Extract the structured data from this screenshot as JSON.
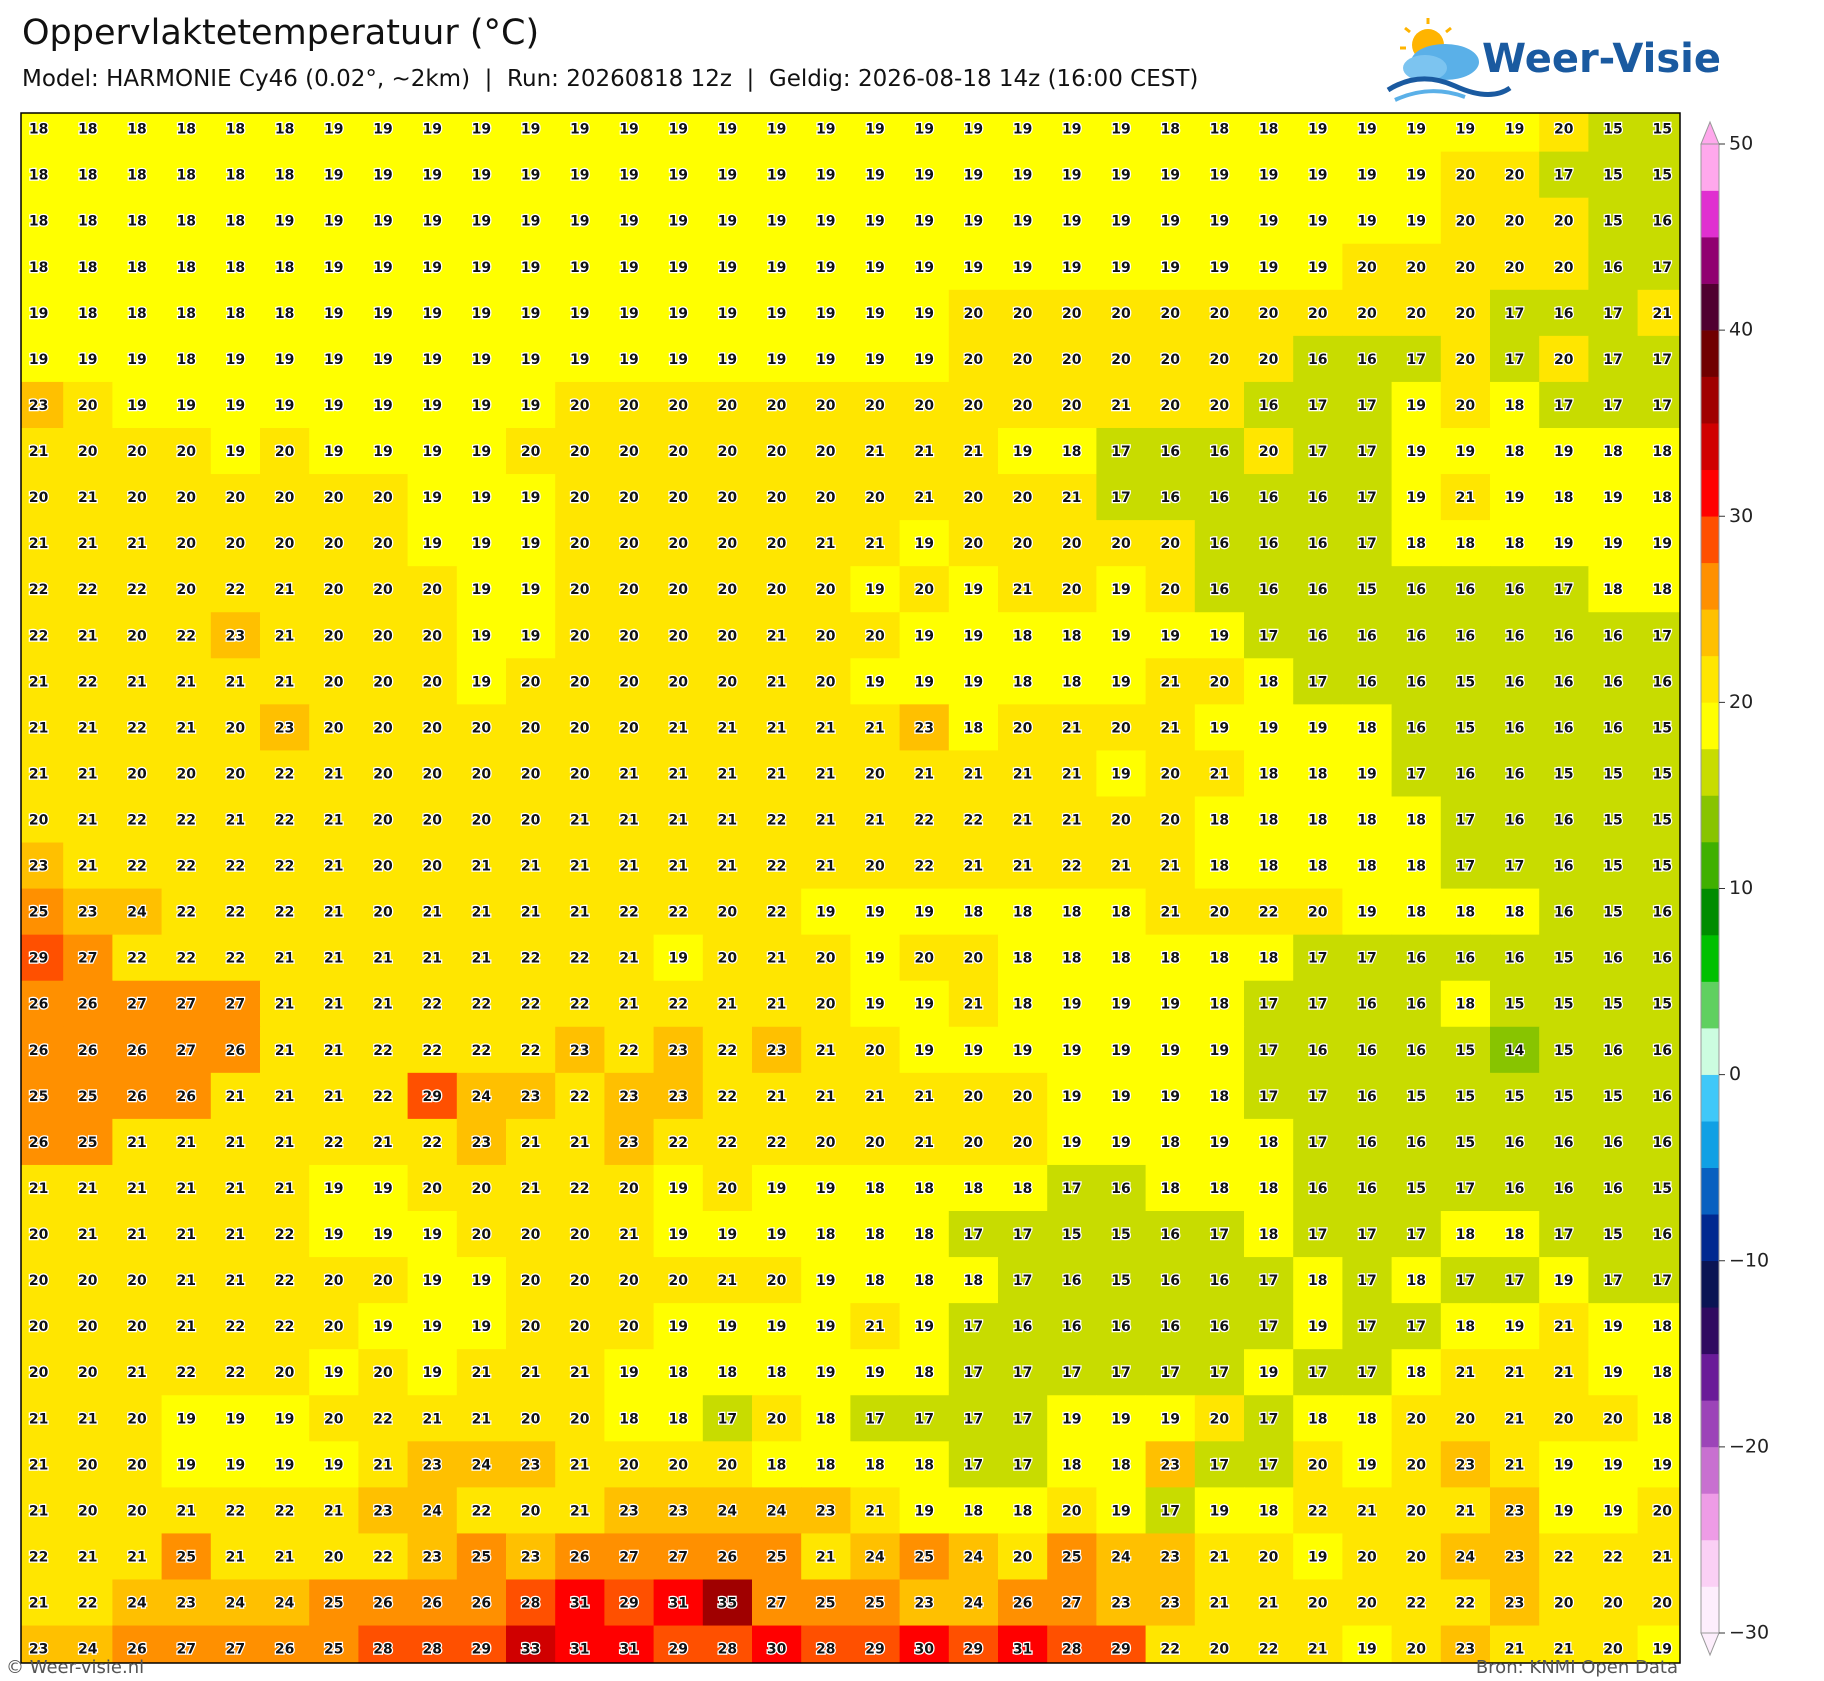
{
  "chart_data": {
    "type": "heatmap",
    "title": "Oppervlaktetemperatuur (°C)",
    "subtitle": "Model: HARMONIE Cy46 (0.02°, ~2km)  |  Run: 20260818 12z  |  Geldig: 2026-08-18 14z (16:00 CEST)",
    "values": [
      [
        18,
        18,
        18,
        18,
        18,
        18,
        19,
        19,
        19,
        19,
        19,
        19,
        19,
        19,
        19,
        19,
        19,
        19,
        19,
        19,
        19,
        19,
        19,
        18,
        18,
        18,
        19,
        19,
        19,
        19,
        19,
        20,
        15,
        15
      ],
      [
        18,
        18,
        18,
        18,
        18,
        18,
        19,
        19,
        19,
        19,
        19,
        19,
        19,
        19,
        19,
        19,
        19,
        19,
        19,
        19,
        19,
        19,
        19,
        19,
        19,
        19,
        19,
        19,
        19,
        20,
        20,
        17,
        15,
        15
      ],
      [
        18,
        18,
        18,
        18,
        18,
        19,
        19,
        19,
        19,
        19,
        19,
        19,
        19,
        19,
        19,
        19,
        19,
        19,
        19,
        19,
        19,
        19,
        19,
        19,
        19,
        19,
        19,
        19,
        19,
        20,
        20,
        20,
        15,
        16
      ],
      [
        18,
        18,
        18,
        18,
        18,
        18,
        19,
        19,
        19,
        19,
        19,
        19,
        19,
        19,
        19,
        19,
        19,
        19,
        19,
        19,
        19,
        19,
        19,
        19,
        19,
        19,
        19,
        20,
        20,
        20,
        20,
        20,
        16,
        17
      ],
      [
        19,
        18,
        18,
        18,
        18,
        18,
        19,
        19,
        19,
        19,
        19,
        19,
        19,
        19,
        19,
        19,
        19,
        19,
        19,
        20,
        20,
        20,
        20,
        20,
        20,
        20,
        20,
        20,
        20,
        20,
        17,
        16,
        17,
        21
      ],
      [
        19,
        19,
        19,
        18,
        19,
        19,
        19,
        19,
        19,
        19,
        19,
        19,
        19,
        19,
        19,
        19,
        19,
        19,
        19,
        20,
        20,
        20,
        20,
        20,
        20,
        20,
        16,
        16,
        17,
        20,
        17,
        20,
        17,
        17
      ],
      [
        23,
        20,
        19,
        19,
        19,
        19,
        19,
        19,
        19,
        19,
        19,
        20,
        20,
        20,
        20,
        20,
        20,
        20,
        20,
        20,
        20,
        20,
        21,
        20,
        20,
        16,
        17,
        17,
        19,
        20,
        18,
        17,
        17,
        17
      ],
      [
        21,
        20,
        20,
        20,
        19,
        20,
        19,
        19,
        19,
        19,
        20,
        20,
        20,
        20,
        20,
        20,
        20,
        21,
        21,
        21,
        19,
        18,
        17,
        16,
        16,
        20,
        17,
        17,
        19,
        19,
        18,
        19,
        18,
        18
      ],
      [
        20,
        21,
        20,
        20,
        20,
        20,
        20,
        20,
        19,
        19,
        19,
        20,
        20,
        20,
        20,
        20,
        20,
        20,
        21,
        20,
        20,
        21,
        17,
        16,
        16,
        16,
        16,
        17,
        19,
        21,
        19,
        18,
        19,
        18
      ],
      [
        21,
        21,
        21,
        20,
        20,
        20,
        20,
        20,
        19,
        19,
        19,
        20,
        20,
        20,
        20,
        20,
        21,
        21,
        19,
        20,
        20,
        20,
        20,
        20,
        16,
        16,
        16,
        17,
        18,
        18,
        18,
        19,
        19,
        19
      ],
      [
        22,
        22,
        22,
        20,
        22,
        21,
        20,
        20,
        20,
        19,
        19,
        20,
        20,
        20,
        20,
        20,
        20,
        19,
        20,
        19,
        21,
        20,
        19,
        20,
        16,
        16,
        16,
        15,
        16,
        16,
        16,
        17,
        18,
        18
      ],
      [
        22,
        21,
        20,
        22,
        23,
        21,
        20,
        20,
        20,
        19,
        19,
        20,
        20,
        20,
        20,
        21,
        20,
        20,
        19,
        19,
        18,
        18,
        19,
        19,
        19,
        17,
        16,
        16,
        16,
        16,
        16,
        16,
        16,
        17
      ],
      [
        21,
        22,
        21,
        21,
        21,
        21,
        20,
        20,
        20,
        19,
        20,
        20,
        20,
        20,
        20,
        21,
        20,
        19,
        19,
        19,
        18,
        18,
        19,
        21,
        20,
        18,
        17,
        16,
        16,
        15,
        16,
        16,
        16,
        16
      ],
      [
        21,
        21,
        22,
        21,
        20,
        23,
        20,
        20,
        20,
        20,
        20,
        20,
        20,
        21,
        21,
        21,
        21,
        21,
        23,
        18,
        20,
        21,
        20,
        21,
        19,
        19,
        19,
        18,
        16,
        15,
        16,
        16,
        16,
        15
      ],
      [
        21,
        21,
        20,
        20,
        20,
        22,
        21,
        20,
        20,
        20,
        20,
        20,
        21,
        21,
        21,
        21,
        21,
        20,
        21,
        21,
        21,
        21,
        19,
        20,
        21,
        18,
        18,
        19,
        17,
        16,
        16,
        15,
        15,
        15
      ],
      [
        20,
        21,
        22,
        22,
        21,
        22,
        21,
        20,
        20,
        20,
        20,
        21,
        21,
        21,
        21,
        22,
        21,
        21,
        22,
        22,
        21,
        21,
        20,
        20,
        18,
        18,
        18,
        18,
        18,
        17,
        16,
        16,
        15,
        15
      ],
      [
        23,
        21,
        22,
        22,
        22,
        22,
        21,
        20,
        20,
        21,
        21,
        21,
        21,
        21,
        21,
        22,
        21,
        20,
        22,
        21,
        21,
        22,
        21,
        21,
        18,
        18,
        18,
        18,
        18,
        17,
        17,
        16,
        15,
        15
      ],
      [
        25,
        23,
        24,
        22,
        22,
        22,
        21,
        20,
        21,
        21,
        21,
        21,
        22,
        22,
        20,
        22,
        19,
        19,
        19,
        18,
        18,
        18,
        18,
        21,
        20,
        22,
        20,
        19,
        18,
        18,
        18,
        16,
        15,
        16
      ],
      [
        29,
        27,
        22,
        22,
        22,
        21,
        21,
        21,
        21,
        21,
        22,
        22,
        21,
        19,
        20,
        21,
        20,
        19,
        20,
        20,
        18,
        18,
        18,
        18,
        18,
        18,
        17,
        17,
        16,
        16,
        16,
        15,
        16,
        16
      ],
      [
        26,
        26,
        27,
        27,
        27,
        21,
        21,
        21,
        22,
        22,
        22,
        22,
        21,
        22,
        21,
        21,
        20,
        19,
        19,
        21,
        18,
        19,
        19,
        19,
        18,
        17,
        17,
        16,
        16,
        18,
        15,
        15,
        15,
        15
      ],
      [
        26,
        26,
        26,
        27,
        26,
        21,
        21,
        22,
        22,
        22,
        22,
        23,
        22,
        23,
        22,
        23,
        21,
        20,
        19,
        19,
        19,
        19,
        19,
        19,
        19,
        17,
        16,
        16,
        16,
        15,
        14,
        15,
        16,
        16
      ],
      [
        25,
        25,
        26,
        26,
        21,
        21,
        21,
        22,
        29,
        24,
        23,
        22,
        23,
        23,
        22,
        21,
        21,
        21,
        21,
        20,
        20,
        19,
        19,
        19,
        18,
        17,
        17,
        16,
        15,
        15,
        15,
        15,
        15,
        16
      ],
      [
        26,
        25,
        21,
        21,
        21,
        21,
        22,
        21,
        22,
        23,
        21,
        21,
        23,
        22,
        22,
        22,
        20,
        20,
        21,
        20,
        20,
        19,
        19,
        18,
        19,
        18,
        17,
        16,
        16,
        15,
        16,
        16,
        16,
        16
      ],
      [
        21,
        21,
        21,
        21,
        21,
        21,
        19,
        19,
        20,
        20,
        21,
        22,
        20,
        19,
        20,
        19,
        19,
        18,
        18,
        18,
        18,
        17,
        16,
        18,
        18,
        18,
        16,
        16,
        15,
        17,
        16,
        16,
        16,
        15
      ],
      [
        20,
        21,
        21,
        21,
        21,
        22,
        19,
        19,
        19,
        20,
        20,
        20,
        21,
        19,
        19,
        19,
        18,
        18,
        18,
        17,
        17,
        15,
        15,
        16,
        17,
        18,
        17,
        17,
        17,
        18,
        18,
        17,
        15,
        16
      ],
      [
        20,
        20,
        20,
        21,
        21,
        22,
        20,
        20,
        19,
        19,
        20,
        20,
        20,
        20,
        21,
        20,
        19,
        18,
        18,
        18,
        17,
        16,
        15,
        16,
        16,
        17,
        18,
        17,
        18,
        17,
        17,
        19,
        17,
        17
      ],
      [
        20,
        20,
        20,
        21,
        22,
        22,
        20,
        19,
        19,
        19,
        20,
        20,
        20,
        19,
        19,
        19,
        19,
        21,
        19,
        17,
        16,
        16,
        16,
        16,
        16,
        17,
        19,
        17,
        17,
        18,
        19,
        21,
        19,
        18
      ],
      [
        20,
        20,
        21,
        22,
        22,
        20,
        19,
        20,
        19,
        21,
        21,
        21,
        19,
        18,
        18,
        18,
        19,
        19,
        18,
        17,
        17,
        17,
        17,
        17,
        17,
        19,
        17,
        17,
        18,
        21,
        21,
        21,
        19,
        18
      ],
      [
        21,
        21,
        20,
        19,
        19,
        19,
        20,
        22,
        21,
        21,
        20,
        20,
        18,
        18,
        17,
        20,
        18,
        17,
        17,
        17,
        17,
        19,
        19,
        19,
        20,
        17,
        18,
        18,
        20,
        20,
        21,
        20,
        20,
        18
      ],
      [
        21,
        20,
        20,
        19,
        19,
        19,
        19,
        21,
        23,
        24,
        23,
        21,
        20,
        20,
        20,
        18,
        18,
        18,
        18,
        17,
        17,
        18,
        18,
        23,
        17,
        17,
        20,
        19,
        20,
        23,
        21,
        19,
        19,
        19
      ],
      [
        21,
        20,
        20,
        21,
        22,
        22,
        21,
        23,
        24,
        22,
        20,
        21,
        23,
        23,
        24,
        24,
        23,
        21,
        19,
        18,
        18,
        20,
        19,
        17,
        19,
        18,
        22,
        21,
        20,
        21,
        23,
        19,
        19,
        20
      ],
      [
        22,
        21,
        21,
        25,
        21,
        21,
        20,
        22,
        23,
        25,
        23,
        26,
        27,
        27,
        26,
        25,
        21,
        24,
        25,
        24,
        20,
        25,
        24,
        23,
        21,
        20,
        19,
        20,
        20,
        24,
        23,
        22,
        22,
        21
      ],
      [
        21,
        22,
        24,
        23,
        24,
        24,
        25,
        26,
        26,
        26,
        28,
        31,
        29,
        31,
        35,
        27,
        25,
        25,
        23,
        24,
        26,
        27,
        23,
        23,
        21,
        21,
        20,
        20,
        22,
        22,
        23,
        20,
        20,
        20
      ],
      [
        23,
        24,
        26,
        27,
        27,
        26,
        25,
        28,
        28,
        29,
        33,
        31,
        31,
        29,
        28,
        30,
        28,
        29,
        30,
        29,
        31,
        28,
        29,
        22,
        20,
        22,
        21,
        19,
        20,
        23,
        21,
        21,
        20,
        19
      ]
    ],
    "zlim": [
      -30,
      50
    ],
    "zticks": [
      {
        "value": -30,
        "label": "−30"
      },
      {
        "value": -20,
        "label": "−20"
      },
      {
        "value": -10,
        "label": "−10"
      },
      0,
      10,
      20,
      30,
      40,
      50
    ],
    "colors": [
      "#fdeefc",
      "#fbd0f5",
      "#ee9ce6",
      "#c870d0",
      "#9c44b8",
      "#6a1c98",
      "#300a60",
      "#0a1454",
      "#002890",
      "#0860c0",
      "#10a0e4",
      "#40c8f8",
      "#ccfce0",
      "#60d060",
      "#00c000",
      "#008c00",
      "#40b000",
      "#88c400",
      "#c8dc00",
      "#ffff00",
      "#ffe600",
      "#ffc000",
      "#ff9000",
      "#ff5000",
      "#ff0000",
      "#d00000",
      "#a00000",
      "#700000",
      "#500030",
      "#900070",
      "#e030d0",
      "#ffa8ec"
    ]
  },
  "logo": "Weer-Visie",
  "footer": {
    "left": "© Weer-visie.nl",
    "right": "Bron: KNMI Open Data"
  }
}
